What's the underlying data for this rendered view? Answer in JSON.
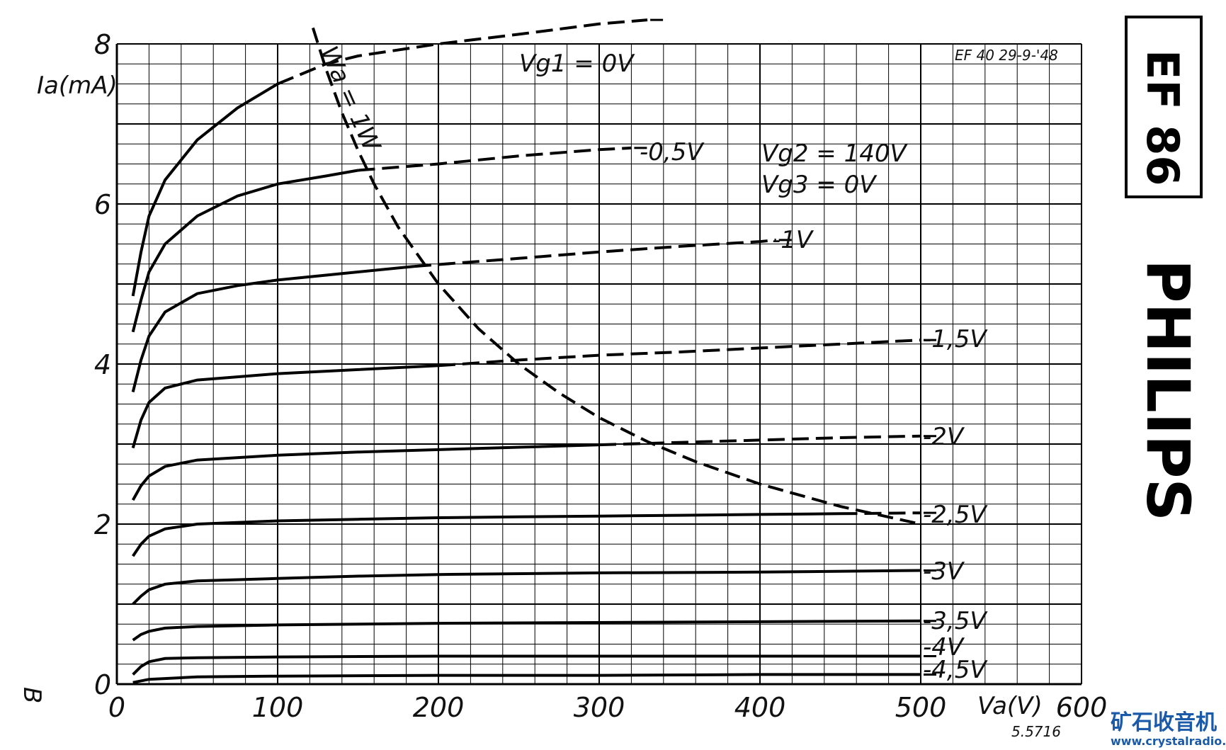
{
  "page": {
    "tube_label": "EF 86",
    "brand": "PHILIPS",
    "header_note": "EF 40 29-9-'48",
    "figure_code": "5.5716",
    "corner_mark": "B",
    "watermark_cn": "矿石收音机",
    "watermark_url": "www.crystalradio.cn"
  },
  "chart_data": {
    "type": "line",
    "title": "",
    "xlabel": "Va(V)",
    "ylabel": "Ia(mA)",
    "xlim": [
      0,
      600
    ],
    "ylim": [
      0,
      8
    ],
    "x_ticks": [
      0,
      100,
      200,
      300,
      400,
      500,
      600
    ],
    "y_ticks": [
      0,
      2,
      4,
      6,
      8
    ],
    "grid": true,
    "conditions": [
      "Vg2 = 140V",
      "Vg3 = 0V"
    ],
    "series": [
      {
        "name": "Vg1 = 0V",
        "points": [
          [
            10,
            4.85
          ],
          [
            15,
            5.4
          ],
          [
            20,
            5.85
          ],
          [
            30,
            6.3
          ],
          [
            50,
            6.8
          ],
          [
            75,
            7.2
          ],
          [
            100,
            7.5
          ],
          [
            130,
            7.75
          ],
          [
            150,
            7.85
          ],
          [
            200,
            8.0
          ],
          [
            250,
            8.12
          ],
          [
            300,
            8.25
          ],
          [
            330,
            8.3
          ]
        ]
      },
      {
        "name": "-0,5V",
        "points": [
          [
            10,
            4.4
          ],
          [
            15,
            4.8
          ],
          [
            20,
            5.15
          ],
          [
            30,
            5.5
          ],
          [
            50,
            5.85
          ],
          [
            75,
            6.1
          ],
          [
            100,
            6.25
          ],
          [
            130,
            6.35
          ],
          [
            150,
            6.42
          ],
          [
            200,
            6.5
          ],
          [
            250,
            6.6
          ],
          [
            300,
            6.68
          ],
          [
            320,
            6.7
          ]
        ]
      },
      {
        "name": "-1V",
        "points": [
          [
            10,
            3.65
          ],
          [
            15,
            4.05
          ],
          [
            20,
            4.35
          ],
          [
            30,
            4.65
          ],
          [
            50,
            4.88
          ],
          [
            75,
            4.98
          ],
          [
            100,
            5.05
          ],
          [
            150,
            5.15
          ],
          [
            185,
            5.22
          ],
          [
            250,
            5.32
          ],
          [
            300,
            5.4
          ],
          [
            350,
            5.47
          ],
          [
            400,
            5.53
          ],
          [
            410,
            5.55
          ]
        ]
      },
      {
        "name": "-1,5V",
        "points": [
          [
            10,
            2.95
          ],
          [
            15,
            3.3
          ],
          [
            20,
            3.52
          ],
          [
            30,
            3.7
          ],
          [
            50,
            3.8
          ],
          [
            75,
            3.84
          ],
          [
            100,
            3.88
          ],
          [
            150,
            3.93
          ],
          [
            200,
            3.98
          ],
          [
            250,
            4.05
          ],
          [
            300,
            4.11
          ],
          [
            350,
            4.15
          ],
          [
            400,
            4.2
          ],
          [
            450,
            4.25
          ],
          [
            500,
            4.3
          ]
        ]
      },
      {
        "name": "-2V",
        "points": [
          [
            10,
            2.3
          ],
          [
            15,
            2.48
          ],
          [
            20,
            2.6
          ],
          [
            30,
            2.72
          ],
          [
            50,
            2.8
          ],
          [
            100,
            2.86
          ],
          [
            150,
            2.9
          ],
          [
            200,
            2.93
          ],
          [
            250,
            2.96
          ],
          [
            300,
            2.99
          ],
          [
            350,
            3.02
          ],
          [
            400,
            3.05
          ],
          [
            450,
            3.08
          ],
          [
            500,
            3.1
          ]
        ]
      },
      {
        "name": "-2,5V",
        "points": [
          [
            10,
            1.6
          ],
          [
            15,
            1.75
          ],
          [
            20,
            1.85
          ],
          [
            30,
            1.94
          ],
          [
            50,
            2.0
          ],
          [
            100,
            2.04
          ],
          [
            150,
            2.06
          ],
          [
            200,
            2.08
          ],
          [
            250,
            2.09
          ],
          [
            300,
            2.1
          ],
          [
            350,
            2.11
          ],
          [
            400,
            2.12
          ],
          [
            450,
            2.13
          ],
          [
            500,
            2.14
          ]
        ]
      },
      {
        "name": "-3V",
        "points": [
          [
            10,
            1.0
          ],
          [
            15,
            1.1
          ],
          [
            20,
            1.18
          ],
          [
            30,
            1.25
          ],
          [
            50,
            1.29
          ],
          [
            100,
            1.32
          ],
          [
            150,
            1.35
          ],
          [
            200,
            1.37
          ],
          [
            300,
            1.39
          ],
          [
            400,
            1.4
          ],
          [
            500,
            1.42
          ]
        ]
      },
      {
        "name": "-3,5V",
        "points": [
          [
            10,
            0.55
          ],
          [
            15,
            0.62
          ],
          [
            20,
            0.66
          ],
          [
            30,
            0.7
          ],
          [
            50,
            0.72
          ],
          [
            100,
            0.74
          ],
          [
            200,
            0.76
          ],
          [
            300,
            0.77
          ],
          [
            400,
            0.78
          ],
          [
            500,
            0.79
          ]
        ]
      },
      {
        "name": "-4V",
        "points": [
          [
            10,
            0.12
          ],
          [
            15,
            0.22
          ],
          [
            20,
            0.28
          ],
          [
            30,
            0.32
          ],
          [
            50,
            0.33
          ],
          [
            100,
            0.34
          ],
          [
            200,
            0.35
          ],
          [
            300,
            0.35
          ],
          [
            400,
            0.35
          ],
          [
            500,
            0.35
          ]
        ]
      },
      {
        "name": "-4,5V",
        "points": [
          [
            10,
            0.02
          ],
          [
            20,
            0.06
          ],
          [
            50,
            0.09
          ],
          [
            100,
            0.1
          ],
          [
            200,
            0.11
          ],
          [
            300,
            0.11
          ],
          [
            400,
            0.12
          ],
          [
            500,
            0.12
          ]
        ]
      },
      {
        "name": "Wa = 1W",
        "points": [
          [
            122,
            8.2
          ],
          [
            130,
            7.69
          ],
          [
            140,
            7.14
          ],
          [
            150,
            6.67
          ],
          [
            160,
            6.25
          ],
          [
            175,
            5.71
          ],
          [
            200,
            5.0
          ],
          [
            225,
            4.44
          ],
          [
            250,
            4.0
          ],
          [
            275,
            3.64
          ],
          [
            300,
            3.33
          ],
          [
            330,
            3.03
          ],
          [
            360,
            2.78
          ],
          [
            400,
            2.5
          ],
          [
            450,
            2.22
          ],
          [
            500,
            2.0
          ]
        ]
      }
    ]
  }
}
